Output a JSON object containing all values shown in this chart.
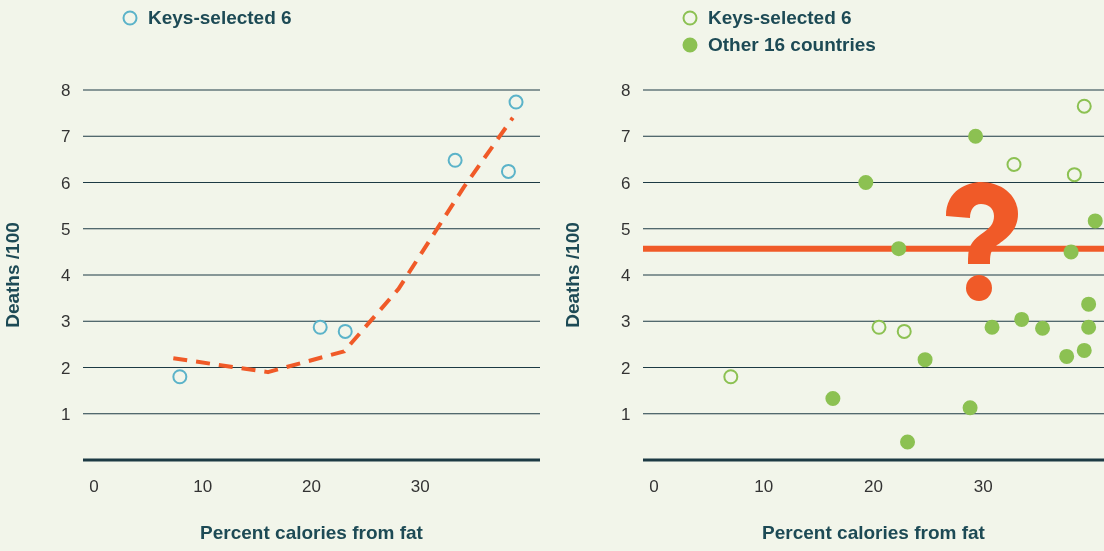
{
  "chart_data": [
    {
      "type": "scatter",
      "xlabel": "Percent calories from fat",
      "ylabel": "Deaths /100",
      "xlim": [
        -1,
        41
      ],
      "ylim": [
        0,
        8
      ],
      "xticks": [
        0,
        10,
        20,
        30
      ],
      "yticks": [
        1,
        2,
        3,
        4,
        5,
        6,
        7,
        8
      ],
      "grid": "y",
      "legend": "top left",
      "marker": "circle",
      "series": [
        {
          "name": "Keys-selected 6",
          "color": "#5bb3c9",
          "x": [
            7.9,
            20.8,
            23.1,
            33.2,
            38.1,
            38.8
          ],
          "values": [
            1.8,
            2.87,
            2.78,
            6.48,
            6.24,
            7.74
          ]
        },
        {
          "type": "line",
          "color": "#f05a28",
          "line_style": "dashed",
          "marker": "none",
          "x": [
            7.3,
            16,
            23,
            28,
            34,
            38.5
          ],
          "values": [
            2.2,
            1.9,
            2.35,
            3.7,
            5.9,
            7.4
          ]
        }
      ]
    },
    {
      "type": "scatter",
      "xlabel": "Percent calories from fat",
      "ylabel": "Deaths /100",
      "xlim": [
        -1,
        41
      ],
      "ylim": [
        0,
        8
      ],
      "xticks": [
        0,
        10,
        20,
        30
      ],
      "yticks": [
        1,
        2,
        3,
        4,
        5,
        6,
        7,
        8
      ],
      "grid": "y",
      "legend": "top left",
      "marker": "circle",
      "ref_lines": [
        {
          "axis": "y",
          "value": 4.57,
          "color": "#f05a28"
        }
      ],
      "series": [
        {
          "name": "Keys-selected 6",
          "color": "#8cc152",
          "x": [
            7.0,
            20.5,
            22.8,
            32.8,
            38.3,
            39.2
          ],
          "values": [
            1.8,
            2.87,
            2.78,
            6.39,
            6.17,
            7.65
          ]
        },
        {
          "name": "Other 16 countries",
          "color": "#8cc152",
          "x": [
            16.3,
            19.3,
            22.3,
            23.1,
            24.7,
            28.8,
            29.3,
            30.8,
            33.5,
            35.4,
            37.6,
            38.0,
            39.2,
            39.6,
            39.6,
            40.2
          ],
          "values": [
            1.33,
            6.0,
            4.57,
            0.39,
            2.17,
            1.13,
            7.0,
            2.87,
            3.04,
            2.85,
            2.24,
            4.5,
            2.37,
            3.37,
            2.87,
            5.17
          ]
        }
      ]
    }
  ]
}
